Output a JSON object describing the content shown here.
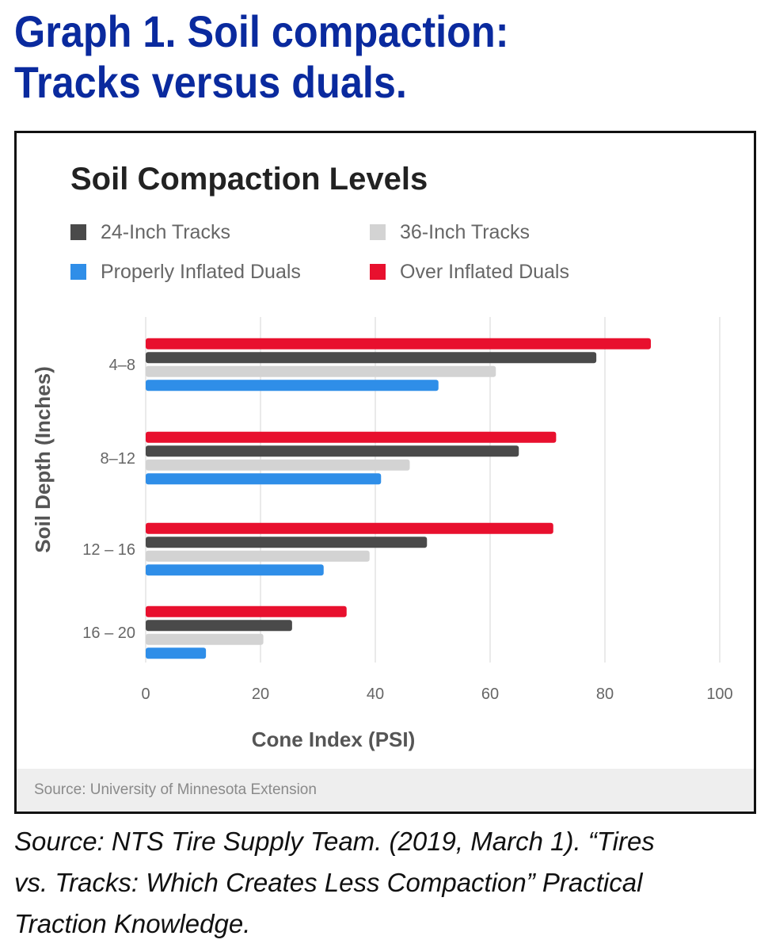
{
  "heading": {
    "line1": "Graph 1. Soil compaction:",
    "line2": "Tracks versus duals."
  },
  "caption": {
    "line1": "Source: NTS Tire Supply Team. (2019, March 1). “Tires",
    "line2": "vs. Tracks: Which Creates Less Compaction” Practical",
    "line3": "Traction Knowledge."
  },
  "chart_source": "Source: University of Minnesota Extension",
  "colors": {
    "heading": "#0a2a9e",
    "tracks24": "#4a4a4a",
    "tracks36": "#d3d3d3",
    "properly": "#2f8ee8",
    "over": "#e8102e"
  },
  "chart_data": {
    "type": "bar",
    "orientation": "horizontal",
    "title": "Soil Compaction Levels",
    "xlabel": "Cone Index (PSI)",
    "ylabel": "Soil Depth (Inches)",
    "xlim": [
      0,
      100
    ],
    "xticks": [
      0,
      20,
      40,
      60,
      80,
      100
    ],
    "grid": true,
    "legend_position": "top",
    "categories": [
      "4–8",
      "8–12",
      "12 – 16",
      "16 – 20"
    ],
    "series": [
      {
        "name": "Over Inflated Duals",
        "color": "#e8102e",
        "values": [
          88,
          71.5,
          71,
          35
        ]
      },
      {
        "name": "24-Inch Tracks",
        "color": "#4a4a4a",
        "values": [
          78.5,
          65,
          49,
          25.5
        ]
      },
      {
        "name": "36-Inch Tracks",
        "color": "#d3d3d3",
        "values": [
          61,
          46,
          39,
          20.5
        ]
      },
      {
        "name": "Properly Inflated Duals",
        "color": "#2f8ee8",
        "values": [
          51,
          41,
          31,
          10.5
        ]
      }
    ],
    "legend": [
      {
        "name": "24-Inch Tracks",
        "color": "#4a4a4a"
      },
      {
        "name": "36-Inch Tracks",
        "color": "#d3d3d3"
      },
      {
        "name": "Properly Inflated Duals",
        "color": "#2f8ee8"
      },
      {
        "name": "Over Inflated Duals",
        "color": "#e8102e"
      }
    ]
  }
}
